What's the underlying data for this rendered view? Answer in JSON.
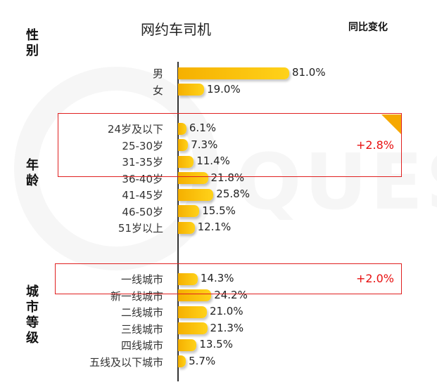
{
  "chart_data": {
    "type": "bar",
    "orientation": "horizontal",
    "title": "网约车司机",
    "change_column_title": "同比变化",
    "value_suffix": "%",
    "sections": [
      {
        "label": "性别",
        "categories": [
          "男",
          "女"
        ],
        "values": [
          81.0,
          19.0
        ]
      },
      {
        "label": "年龄",
        "categories": [
          "24岁及以下",
          "25-30岁",
          "31-35岁",
          "36-40岁",
          "41-45岁",
          "46-50岁",
          "51岁以上"
        ],
        "values": [
          6.1,
          7.3,
          11.4,
          21.8,
          25.8,
          15.5,
          12.1
        ]
      },
      {
        "label": "城市等级",
        "categories": [
          "一线城市",
          "新一线城市",
          "二线城市",
          "三线城市",
          "四线城市",
          "五线及以下城市"
        ],
        "values": [
          14.3,
          24.2,
          21.0,
          21.3,
          13.5,
          5.7
        ]
      }
    ],
    "highlights": [
      {
        "section": 1,
        "from": 0,
        "to": 2,
        "change": "+2.8%"
      },
      {
        "section": 2,
        "from": 0,
        "to": 0,
        "change": "+2.0%"
      }
    ],
    "colors": {
      "bar_start": "#f5b000",
      "bar_end": "#ffd21a",
      "highlight": "#e02020",
      "change_text": "#e81010",
      "corner": "#f6a800"
    },
    "grid": false,
    "legend": "none"
  }
}
